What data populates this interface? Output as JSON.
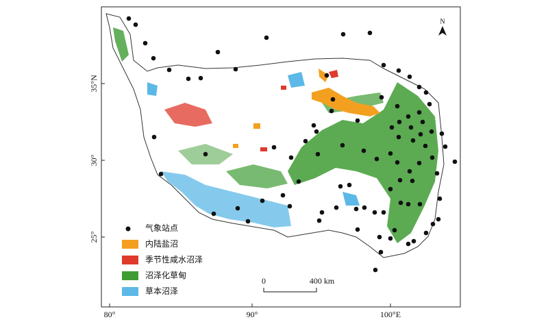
{
  "map": {
    "north": "N",
    "x_axis_labels": [
      "80°",
      "90°",
      "100°E"
    ],
    "y_axis_labels": [
      "35°N",
      "30°",
      "25°"
    ],
    "legend": [
      "气象站点",
      "内陆盐沼",
      "季节性咸水沼泽",
      "沼泽化草甸",
      "草本沼泽"
    ],
    "scale_bar": {
      "start": "0",
      "end": "400 km"
    }
  }
}
